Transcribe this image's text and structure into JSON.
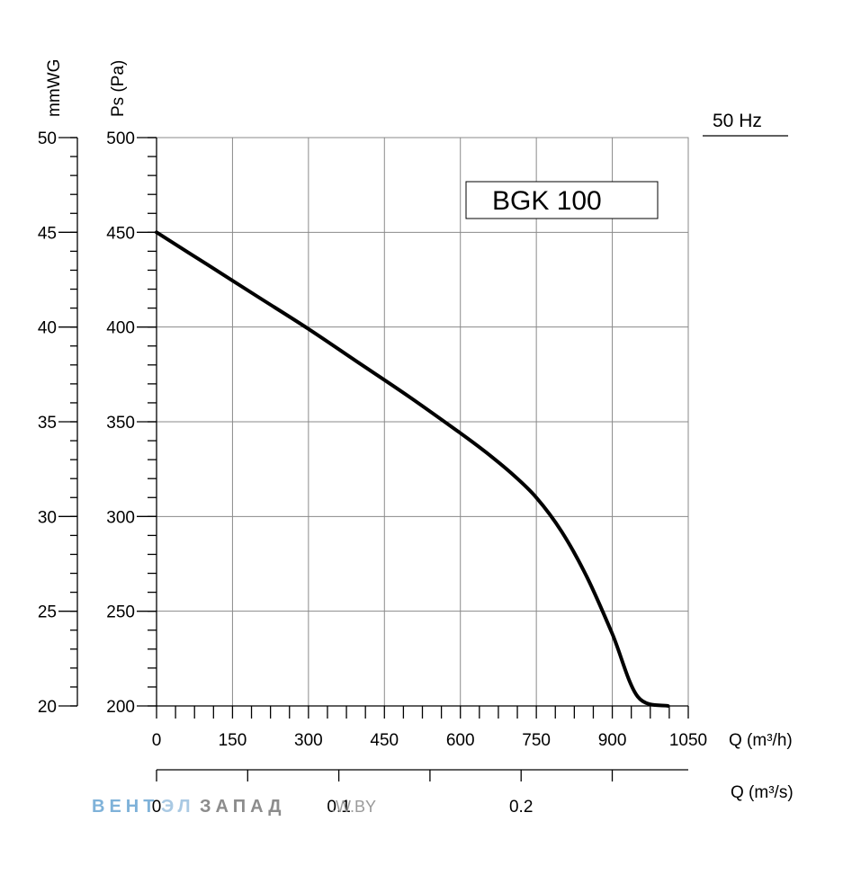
{
  "chart_data": {
    "type": "line",
    "model_label": "BGK 100",
    "frequency_label": "50 Hz",
    "ylabel_left": "mmWG",
    "ylabel_right": "Ps (Pa)",
    "xlabel": "Q (m³/h)",
    "xlabel_secondary": "Q (m³/s)",
    "ylim": [
      200,
      500
    ],
    "ylim_mmwg": [
      20,
      50
    ],
    "xlim": [
      0,
      1050
    ],
    "xlim_m3s": [
      0,
      0.2917
    ],
    "y_ticks_pa": [
      "500",
      "450",
      "400",
      "350",
      "300",
      "250",
      "200"
    ],
    "y_ticks_mmwg": [
      "50",
      "45",
      "40",
      "35",
      "30",
      "25",
      "20"
    ],
    "x_ticks": [
      "0",
      "150",
      "300",
      "450",
      "600",
      "750",
      "900",
      "1050"
    ],
    "x_ticks_m3s": [
      "0",
      "0.1",
      "0.2"
    ],
    "grid": true,
    "series": [
      {
        "x": [
          0,
          100,
          200,
          300,
          400,
          500,
          600,
          650,
          700,
          750,
          800,
          850,
          900,
          950,
          1010
        ],
        "values": [
          450,
          433,
          416,
          399,
          381,
          363,
          344,
          334,
          323,
          310,
          292,
          268,
          238,
          205,
          200
        ]
      }
    ]
  },
  "watermark": {
    "blue_text": "ВЕНТ",
    "mid_text": "ЭЛ",
    "gray_text": "ЗАПАД",
    "url_text": ".W.BY"
  }
}
